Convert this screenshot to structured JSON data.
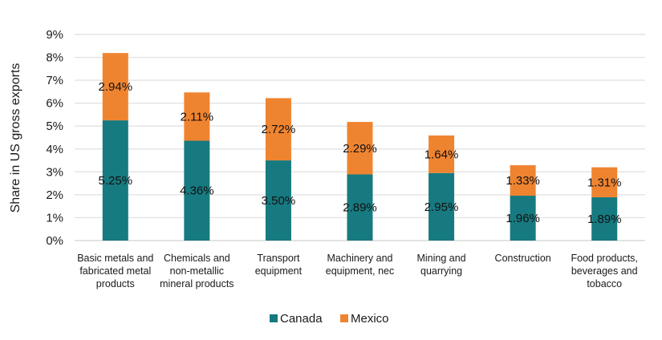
{
  "chart_data": {
    "type": "bar",
    "stacked": true,
    "title": "",
    "xlabel": "",
    "ylabel": "Share in US gross exports",
    "ylim": [
      0,
      9
    ],
    "yticks": [
      "0%",
      "1%",
      "2%",
      "3%",
      "4%",
      "5%",
      "6%",
      "7%",
      "8%",
      "9%"
    ],
    "grid": true,
    "legend_position": "bottom",
    "categories": [
      [
        "Basic metals and",
        "fabricated metal",
        "products"
      ],
      [
        "Chemicals and",
        "non-metallic",
        "mineral products"
      ],
      [
        "Transport",
        "equipment"
      ],
      [
        "Machinery and",
        "equipment, nec"
      ],
      [
        "Mining and",
        "quarrying"
      ],
      [
        "Construction"
      ],
      [
        "Food products,",
        "beverages and",
        "tobacco"
      ]
    ],
    "series": [
      {
        "name": "Canada",
        "color": "#167a80",
        "values": [
          5.25,
          4.36,
          3.5,
          2.89,
          2.95,
          1.96,
          1.89
        ],
        "labels": [
          "5.25%",
          "4.36%",
          "3.50%",
          "2.89%",
          "2.95%",
          "1.96%",
          "1.89%"
        ]
      },
      {
        "name": "Mexico",
        "color": "#ef8430",
        "values": [
          2.94,
          2.11,
          2.72,
          2.29,
          1.64,
          1.33,
          1.31
        ],
        "labels": [
          "2.94%",
          "2.11%",
          "2.72%",
          "2.29%",
          "1.64%",
          "1.33%",
          "1.31%"
        ]
      }
    ]
  }
}
